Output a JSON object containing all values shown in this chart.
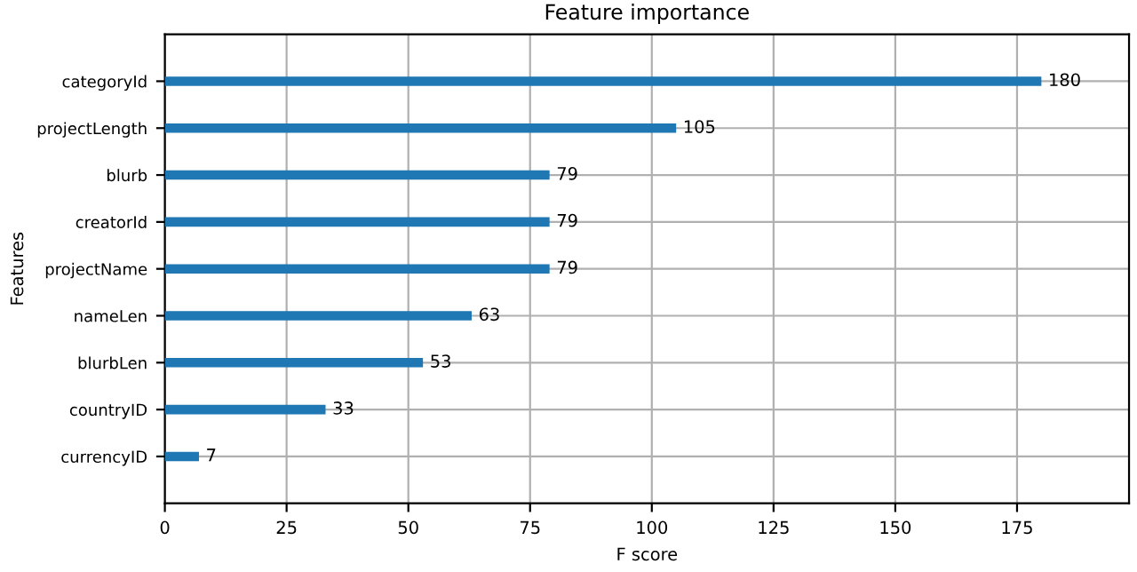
{
  "chart_data": {
    "type": "bar",
    "orientation": "horizontal",
    "title": "Feature importance",
    "xlabel": "F score",
    "ylabel": "Features",
    "categories": [
      "categoryId",
      "projectLength",
      "blurb",
      "creatorId",
      "projectName",
      "nameLen",
      "blurbLen",
      "countryID",
      "currencyID"
    ],
    "values": [
      180,
      105,
      79,
      79,
      79,
      63,
      53,
      33,
      7
    ],
    "color": "#1f77b4",
    "data_labels": true,
    "grid": true,
    "xlim": [
      0,
      198
    ],
    "xticks": [
      0,
      25,
      50,
      75,
      100,
      125,
      150,
      175
    ]
  }
}
